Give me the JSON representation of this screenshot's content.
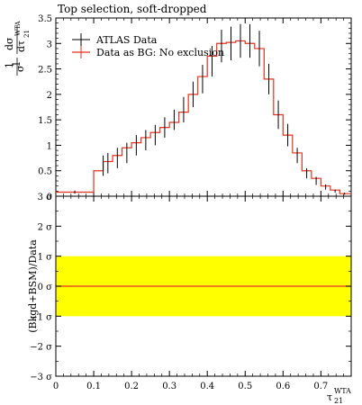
{
  "chart_data": [
    {
      "type": "line",
      "title": "Top selection, soft-dropped",
      "ylabel": "1/σ dσ/dτ21WTA",
      "ylabel_parts": {
        "one": "1",
        "sigma": "σ",
        "dsigma": "dσ",
        "dtau": "dτ",
        "sub": "21",
        "sup": "WTA"
      },
      "xlim": [
        0,
        0.78
      ],
      "ylim": [
        0,
        3.5
      ],
      "ytick_labels": [
        "0",
        "0.5",
        "1",
        "1.5",
        "2",
        "2.5",
        "3",
        "3.5"
      ],
      "ytick_values": [
        0,
        0.5,
        1,
        1.5,
        2,
        2.5,
        3,
        3.5
      ],
      "legend_position": "top-left",
      "series": [
        {
          "name": "ATLAS Data",
          "kind": "points",
          "color": "#000000",
          "x": [
            0.05,
            0.125,
            0.1375,
            0.1625,
            0.1875,
            0.2125,
            0.2375,
            0.2625,
            0.2875,
            0.3125,
            0.3375,
            0.3625,
            0.3875,
            0.4125,
            0.4375,
            0.4625,
            0.4875,
            0.5125,
            0.5375,
            0.5625,
            0.5875,
            0.6125,
            0.6375,
            0.6625,
            0.6875,
            0.7125,
            0.7375,
            0.7625
          ],
          "y": [
            0.08,
            0.6,
            0.65,
            0.75,
            0.85,
            1.0,
            1.1,
            1.2,
            1.35,
            1.5,
            1.7,
            2.0,
            2.3,
            2.65,
            2.95,
            3.0,
            3.05,
            3.05,
            2.9,
            2.3,
            1.6,
            1.2,
            0.8,
            0.45,
            0.3,
            0.18,
            0.1,
            0.05
          ],
          "yerr": [
            0.03,
            0.2,
            0.2,
            0.2,
            0.2,
            0.2,
            0.2,
            0.2,
            0.2,
            0.2,
            0.25,
            0.25,
            0.28,
            0.3,
            0.32,
            0.33,
            0.33,
            0.33,
            0.35,
            0.3,
            0.28,
            0.22,
            0.15,
            0.1,
            0.08,
            0.05,
            0.03,
            0.02
          ]
        },
        {
          "name": "Data as BG: No exclusion",
          "kind": "step",
          "color": "#e8301b",
          "edges": [
            0,
            0.1,
            0.125,
            0.15,
            0.175,
            0.2,
            0.225,
            0.25,
            0.275,
            0.3,
            0.325,
            0.35,
            0.375,
            0.4,
            0.425,
            0.45,
            0.475,
            0.5,
            0.525,
            0.55,
            0.575,
            0.6,
            0.625,
            0.65,
            0.675,
            0.7,
            0.725,
            0.75,
            0.78
          ],
          "values": [
            0.08,
            0.5,
            0.68,
            0.8,
            0.95,
            1.05,
            1.15,
            1.25,
            1.35,
            1.45,
            1.65,
            2.0,
            2.35,
            2.75,
            3.0,
            3.02,
            3.05,
            3.0,
            2.9,
            2.3,
            1.6,
            1.2,
            0.85,
            0.5,
            0.35,
            0.2,
            0.12,
            0.05
          ]
        }
      ]
    },
    {
      "type": "area",
      "ylabel": "(Bkgd+BSM)/Data",
      "xlabel": "τ21WTA",
      "xlabel_parts": {
        "tau": "τ",
        "sub": "21",
        "sup": "WTA"
      },
      "xlim": [
        0,
        0.78
      ],
      "ylim": [
        -3,
        3
      ],
      "xtick_values": [
        0,
        0.1,
        0.2,
        0.3,
        0.4,
        0.5,
        0.6,
        0.7
      ],
      "xtick_labels": [
        "0",
        "0.1",
        "0.2",
        "0.3",
        "0.4",
        "0.5",
        "0.6",
        "0.7"
      ],
      "ytick_values": [
        -3,
        -2,
        -1,
        0,
        1,
        2,
        3
      ],
      "ytick_labels": [
        "−3 σ",
        "−2 σ",
        "−1 σ",
        "0 σ",
        "1 σ",
        "2 σ",
        "3 σ"
      ],
      "band": {
        "lower": -1,
        "upper": 1,
        "color": "#ffff00"
      },
      "line": {
        "y": 0,
        "color": "#e8301b"
      }
    }
  ]
}
